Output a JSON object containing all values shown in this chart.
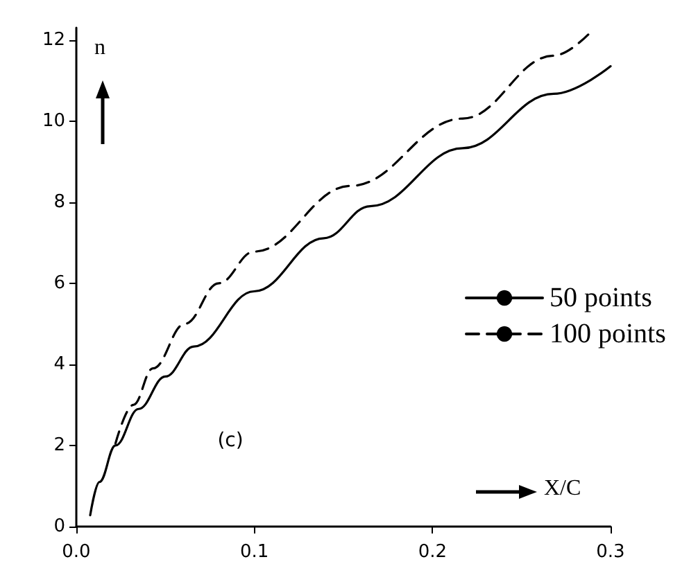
{
  "chart_data": {
    "type": "line",
    "xlabel": "X/C",
    "ylabel": "n",
    "xlim": [
      0,
      0.3
    ],
    "ylim": [
      0,
      12.3
    ],
    "xticks": [
      {
        "value": 0,
        "label": "0.0"
      },
      0.1,
      0.2,
      0.3
    ],
    "yticks": [
      0,
      2,
      4,
      6,
      8,
      10,
      12
    ],
    "grid": false,
    "legend": "right",
    "marker": "none",
    "annotations": [
      "(c)"
    ],
    "series": [
      {
        "name": "50 points",
        "color": "#000000",
        "line_style": "solid",
        "x": [
          0.0078,
          0.013,
          0.022,
          0.035,
          0.05,
          0.066,
          0.0998,
          0.139,
          0.165,
          0.217,
          0.268,
          0.3
        ],
        "values": [
          0.28,
          1.1,
          2.0,
          2.9,
          3.7,
          4.44,
          5.8,
          7.11,
          7.9,
          9.33,
          10.67,
          11.35
        ]
      },
      {
        "name": "100 points",
        "color": "#000000",
        "line_style": "dashed",
        "x": [
          0.022,
          0.032,
          0.043,
          0.061,
          0.08,
          0.0998,
          0.154,
          0.217,
          0.268,
          0.289
        ],
        "values": [
          2.05,
          3.0,
          3.9,
          5.0,
          6.0,
          6.78,
          8.4,
          10.06,
          11.61,
          12.2
        ]
      }
    ]
  }
}
